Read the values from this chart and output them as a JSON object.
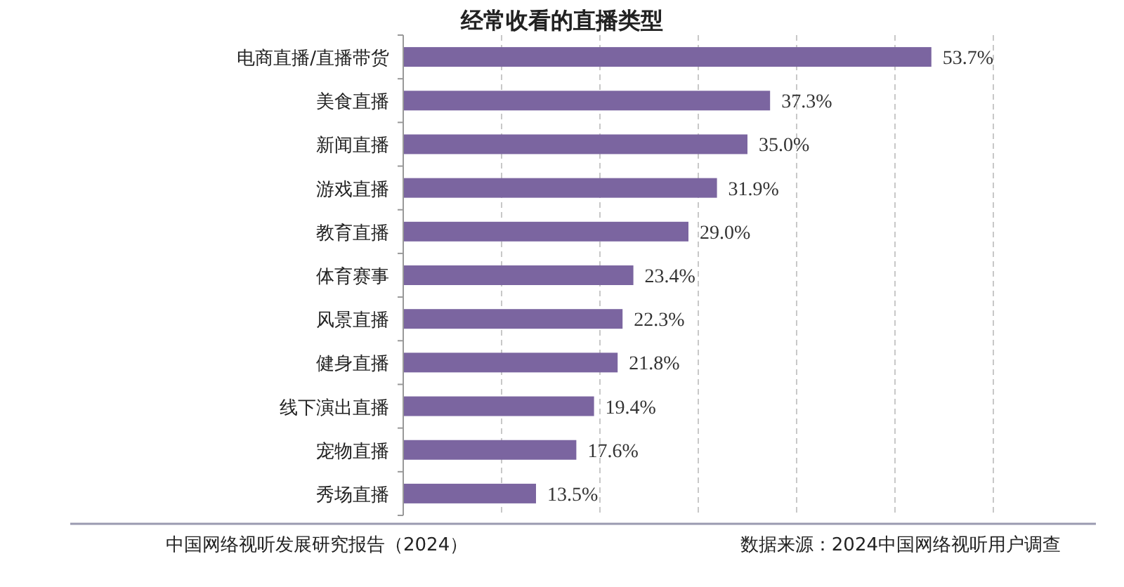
{
  "chart_data": {
    "type": "bar",
    "orientation": "horizontal",
    "title": "经常收看的直播类型",
    "categories": [
      "电商直播/直播带货",
      "美食直播",
      "新闻直播",
      "游戏直播",
      "教育直播",
      "体育赛事",
      "风景直播",
      "健身直播",
      "线下演出直播",
      "宠物直播",
      "秀场直播"
    ],
    "values": [
      53.7,
      37.3,
      35.0,
      31.9,
      29.0,
      23.4,
      22.3,
      21.8,
      19.4,
      17.6,
      13.5
    ],
    "value_labels": [
      "53.7%",
      "37.3%",
      "35.0%",
      "31.9%",
      "29.0%",
      "23.4%",
      "22.3%",
      "21.8%",
      "19.4%",
      "17.6%",
      "13.5%"
    ],
    "color": "#7b65a0",
    "xlim": [
      0,
      60
    ],
    "xticks": [
      {
        "value": 10,
        "label": null
      },
      {
        "value": 20,
        "label": null
      },
      {
        "value": 30,
        "label": null
      },
      {
        "value": 40,
        "label": null
      },
      {
        "value": 50,
        "label": null
      },
      {
        "value": 60,
        "label": null
      }
    ],
    "grid": "x",
    "tick_labels": "y",
    "annotations": [
      "中国网络视听发展研究报告（2024）",
      "数据来源：2024中国网络视听用户调查"
    ]
  }
}
